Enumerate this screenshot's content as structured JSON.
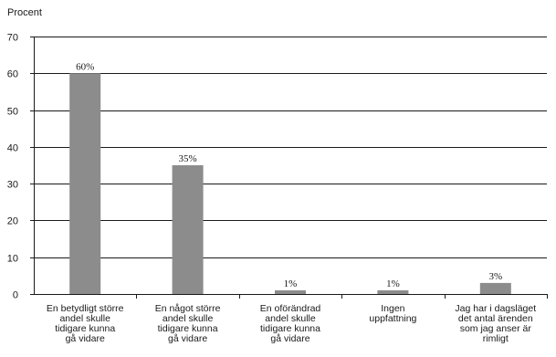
{
  "chart_data": {
    "type": "bar",
    "ylabel": "Procent",
    "ylim": [
      0,
      70
    ],
    "yticks": [
      0,
      10,
      20,
      30,
      40,
      50,
      60,
      70
    ],
    "grid": true,
    "categories": [
      [
        "En betydligt större",
        "andel skulle",
        "tidigare kunna",
        "gå vidare"
      ],
      [
        "En något större",
        "andel skulle",
        "tidigare kunna",
        "gå vidare"
      ],
      [
        "En oförändrad",
        "andel skulle",
        "tidigare kunna",
        "gå vidare"
      ],
      [
        "Ingen",
        "uppfattning"
      ],
      [
        "Jag har i dagsläget",
        "det antal ärenden",
        "som jag anser är",
        "rimligt"
      ]
    ],
    "values": [
      60,
      35,
      1,
      1,
      3
    ],
    "data_labels": [
      "60%",
      "35%",
      "1%",
      "1%",
      "3%"
    ],
    "colors": {
      "bar": "#8c8c8c",
      "grid": "#1a1a1a",
      "axis": "#1a1a1a"
    }
  }
}
